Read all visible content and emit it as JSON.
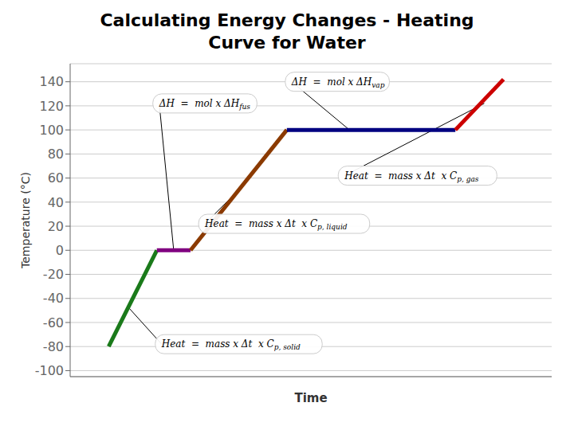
{
  "chart_data": {
    "type": "line",
    "title": "Calculating Energy Changes - Heating",
    "subtitle": "Curve for Water",
    "x_label": "Time",
    "y_label": "Temperature (°C)",
    "xlim": [
      0,
      10
    ],
    "ylim": [
      -105,
      155
    ],
    "yticks": [
      -100,
      -80,
      -60,
      -40,
      -20,
      0,
      20,
      40,
      60,
      80,
      100,
      120,
      140
    ],
    "grid": true,
    "tick_labels": "y",
    "series": [
      {
        "color": "#1a7a1a",
        "x": [
          0.8,
          1.8
        ],
        "values": [
          -80,
          0
        ]
      },
      {
        "color": "#800080",
        "x": [
          1.8,
          2.5
        ],
        "values": [
          0,
          0
        ]
      },
      {
        "color": "#8B3A00",
        "x": [
          2.5,
          4.5
        ],
        "values": [
          0,
          100
        ]
      },
      {
        "color": "#000080",
        "x": [
          4.5,
          8.0
        ],
        "values": [
          100,
          100
        ]
      },
      {
        "color": "#cc0000",
        "x": [
          8.0,
          9.0
        ],
        "values": [
          100,
          142
        ]
      }
    ],
    "annotations": [
      {
        "text": "ΔH  =  mol x ΔH",
        "subscript": "fus",
        "x": 2.15,
        "y": 0,
        "text_x": 1.85,
        "text_y": 122
      },
      {
        "text": "ΔH  =  mol x ΔH",
        "subscript": "vap",
        "x": 5.8,
        "y": 100,
        "text_x": 4.6,
        "text_y": 140
      },
      {
        "text": "Heat  =  mass x Δt  x C",
        "subscript": "p, liquid",
        "x": 3.5,
        "y": 50,
        "text_x": 2.8,
        "text_y": 22
      },
      {
        "text": "Heat  =  mass x Δt  x C",
        "subscript": "p, gas",
        "x": 8.6,
        "y": 122,
        "text_x": 5.7,
        "text_y": 62
      },
      {
        "text": "Heat  =  mass x Δt  x C",
        "subscript": "p, solid",
        "x": 1.2,
        "y": -47,
        "text_x": 1.9,
        "text_y": -78
      }
    ]
  }
}
